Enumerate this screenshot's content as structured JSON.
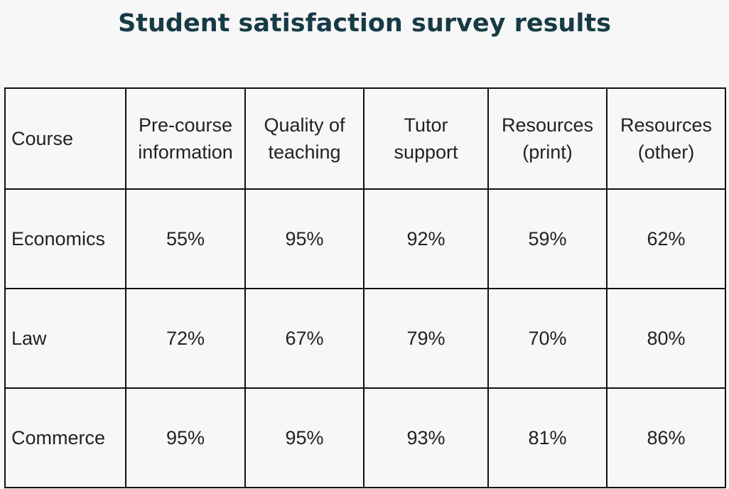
{
  "title": "Student satisfaction survey results",
  "chart_data": {
    "type": "table",
    "title": "Student satisfaction survey results",
    "columns": [
      "Course",
      "Pre-course information",
      "Quality of teaching",
      "Tutor support",
      "Resources (print)",
      "Resources (other)"
    ],
    "header": [
      {
        "lines": [
          "Course"
        ]
      },
      {
        "lines": [
          "Pre-course",
          "information"
        ]
      },
      {
        "lines": [
          "Quality of",
          "teaching"
        ]
      },
      {
        "lines": [
          "Tutor",
          "support"
        ]
      },
      {
        "lines": [
          "Resources",
          "(print)"
        ]
      },
      {
        "lines": [
          "Resources",
          "(other)"
        ]
      }
    ],
    "rows": [
      {
        "course": "Economics",
        "values": [
          "55%",
          "95%",
          "92%",
          "59%",
          "62%"
        ]
      },
      {
        "course": "Law",
        "values": [
          "72%",
          "67%",
          "79%",
          "70%",
          "80%"
        ]
      },
      {
        "course": "Commerce",
        "values": [
          "95%",
          "95%",
          "93%",
          "81%",
          "86%"
        ]
      }
    ]
  }
}
